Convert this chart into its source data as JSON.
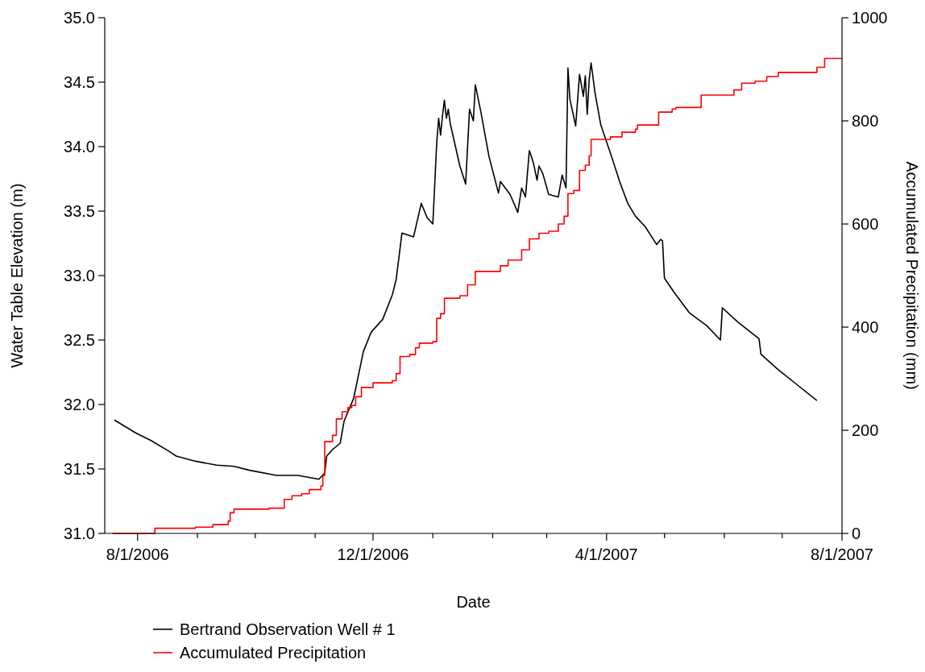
{
  "chart_data": {
    "type": "line",
    "xlabel": "Date",
    "ylabel": "Water Table Elevation (m)",
    "y2label": "Accumulated Precipitation (mm)",
    "xlim": [
      "2006-07-15",
      "2007-08-01"
    ],
    "xticks": [
      {
        "value": "2006-08-01",
        "label": "8/1/2006"
      },
      {
        "value": "2006-09-01",
        "label": null
      },
      {
        "value": "2006-10-01",
        "label": null
      },
      {
        "value": "2006-11-01",
        "label": null
      },
      {
        "value": "2006-12-01",
        "label": "12/1/2006"
      },
      {
        "value": "2007-01-01",
        "label": null
      },
      {
        "value": "2007-02-01",
        "label": null
      },
      {
        "value": "2007-03-01",
        "label": null
      },
      {
        "value": "2007-04-01",
        "label": "4/1/2007"
      },
      {
        "value": "2007-05-01",
        "label": null
      },
      {
        "value": "2007-06-01",
        "label": null
      },
      {
        "value": "2007-07-01",
        "label": null
      },
      {
        "value": "2007-08-01",
        "label": "8/1/2007"
      }
    ],
    "ylim": [
      31,
      35
    ],
    "yticks": [
      {
        "value": 31,
        "label": "31.0"
      },
      {
        "value": 31.5,
        "label": "31.5"
      },
      {
        "value": 32,
        "label": "32.0"
      },
      {
        "value": 32.5,
        "label": "32.5"
      },
      {
        "value": 33,
        "label": "33.0"
      },
      {
        "value": 33.5,
        "label": "33.5"
      },
      {
        "value": 34,
        "label": "34.0"
      },
      {
        "value": 34.5,
        "label": "34.5"
      },
      {
        "value": 35,
        "label": "35.0"
      }
    ],
    "y2lim": [
      0,
      1000
    ],
    "y2ticks": [
      0,
      200,
      400,
      600,
      800,
      1000
    ],
    "legend": "bottom",
    "grid": false,
    "series": [
      {
        "name": "Bertrand Observation Well # 1",
        "type": "line",
        "color": "#000000",
        "x": [
          "2006-07-20",
          "2006-07-31",
          "2006-08-08",
          "2006-08-17",
          "2006-08-21",
          "2006-08-31",
          "2006-09-11",
          "2006-09-20",
          "2006-09-28",
          "2006-10-12",
          "2006-10-23",
          "2006-11-03",
          "2006-11-06",
          "2006-11-07",
          "2006-11-10",
          "2006-11-14",
          "2006-11-16",
          "2006-11-21",
          "2006-11-26",
          "2006-11-30",
          "2006-12-06",
          "2006-12-11",
          "2006-12-13",
          "2006-12-16",
          "2006-12-22",
          "2006-12-26",
          "2006-12-29",
          "2007-01-01",
          "2007-01-03",
          "2007-01-04",
          "2007-01-05",
          "2007-01-06",
          "2007-01-07",
          "2007-01-08",
          "2007-01-09",
          "2007-01-10",
          "2007-01-15",
          "2007-01-18",
          "2007-01-20",
          "2007-01-22",
          "2007-01-23",
          "2007-01-26",
          "2007-01-30",
          "2007-02-04",
          "2007-02-05",
          "2007-02-10",
          "2007-02-14",
          "2007-02-16",
          "2007-02-18",
          "2007-02-20",
          "2007-02-22",
          "2007-02-24",
          "2007-02-25",
          "2007-02-27",
          "2007-03-02",
          "2007-03-07",
          "2007-03-09",
          "2007-03-11",
          "2007-03-12",
          "2007-03-13",
          "2007-03-16",
          "2007-03-18",
          "2007-03-20",
          "2007-03-21",
          "2007-03-22",
          "2007-03-23",
          "2007-03-24",
          "2007-03-26",
          "2007-03-29",
          "2007-04-03",
          "2007-04-08",
          "2007-04-12",
          "2007-04-16",
          "2007-04-21",
          "2007-04-27",
          "2007-04-29",
          "2007-04-30",
          "2007-05-01",
          "2007-05-06",
          "2007-05-14",
          "2007-05-23",
          "2007-05-30",
          "2007-05-31",
          "2007-06-08",
          "2007-06-19",
          "2007-06-20",
          "2007-06-29",
          "2007-07-09",
          "2007-07-19"
        ],
        "values": [
          31.88,
          31.78,
          31.72,
          31.64,
          31.6,
          31.56,
          31.53,
          31.52,
          31.49,
          31.45,
          31.45,
          31.42,
          31.47,
          31.6,
          31.65,
          31.7,
          31.87,
          32.05,
          32.41,
          32.56,
          32.66,
          32.85,
          32.97,
          33.33,
          33.3,
          33.56,
          33.45,
          33.4,
          34.03,
          34.22,
          34.09,
          34.24,
          34.36,
          34.22,
          34.29,
          34.18,
          33.85,
          33.71,
          34.29,
          34.2,
          34.48,
          34.26,
          33.93,
          33.64,
          33.73,
          33.63,
          33.49,
          33.68,
          33.61,
          33.97,
          33.88,
          33.74,
          33.85,
          33.79,
          33.63,
          33.61,
          33.78,
          33.68,
          34.61,
          34.37,
          34.16,
          34.56,
          34.39,
          34.55,
          34.25,
          34.52,
          34.65,
          34.42,
          34.17,
          33.95,
          33.72,
          33.56,
          33.46,
          33.38,
          33.24,
          33.28,
          33.27,
          32.98,
          32.87,
          32.71,
          32.61,
          32.5,
          32.75,
          32.64,
          32.51,
          32.39,
          32.27,
          32.15,
          32.03
        ]
      },
      {
        "name": "Accumulated Precipitation",
        "type": "step",
        "axis": "y2",
        "color": "#ff0000",
        "x": [
          "2006-07-19",
          "2006-08-10",
          "2006-08-31",
          "2006-09-09",
          "2006-09-17",
          "2006-09-18",
          "2006-09-20",
          "2006-10-08",
          "2006-10-16",
          "2006-10-20",
          "2006-10-25",
          "2006-10-29",
          "2006-11-04",
          "2006-11-05",
          "2006-11-06",
          "2006-11-10",
          "2006-11-12",
          "2006-11-15",
          "2006-11-18",
          "2006-11-20",
          "2006-11-22",
          "2006-11-25",
          "2006-12-01",
          "2006-12-11",
          "2006-12-13",
          "2006-12-15",
          "2006-12-20",
          "2006-12-23",
          "2006-12-25",
          "2007-01-01",
          "2007-01-03",
          "2007-01-05",
          "2007-01-07",
          "2007-01-15",
          "2007-01-19",
          "2007-01-23",
          "2007-02-05",
          "2007-02-09",
          "2007-02-16",
          "2007-02-20",
          "2007-02-25",
          "2007-03-02",
          "2007-03-07",
          "2007-03-10",
          "2007-03-12",
          "2007-03-15",
          "2007-03-18",
          "2007-03-21",
          "2007-03-23",
          "2007-03-24",
          "2007-04-03",
          "2007-04-09",
          "2007-04-16",
          "2007-04-17",
          "2007-04-28",
          "2007-05-05",
          "2007-05-07",
          "2007-05-20",
          "2007-06-06",
          "2007-06-10",
          "2007-06-17",
          "2007-06-23",
          "2007-06-29",
          "2007-07-19",
          "2007-07-23",
          "2007-08-01"
        ],
        "values": [
          0,
          10,
          12,
          17,
          24,
          40,
          47,
          49,
          66,
          73,
          77,
          85,
          92,
          112,
          178,
          190,
          222,
          236,
          244,
          248,
          265,
          283,
          292,
          296,
          310,
          343,
          347,
          360,
          369,
          372,
          417,
          426,
          456,
          461,
          482,
          508,
          519,
          530,
          550,
          571,
          582,
          586,
          600,
          615,
          659,
          665,
          704,
          714,
          732,
          764,
          769,
          778,
          784,
          792,
          817,
          823,
          826,
          850,
          860,
          873,
          877,
          886,
          894,
          904,
          921,
          922
        ]
      }
    ]
  }
}
